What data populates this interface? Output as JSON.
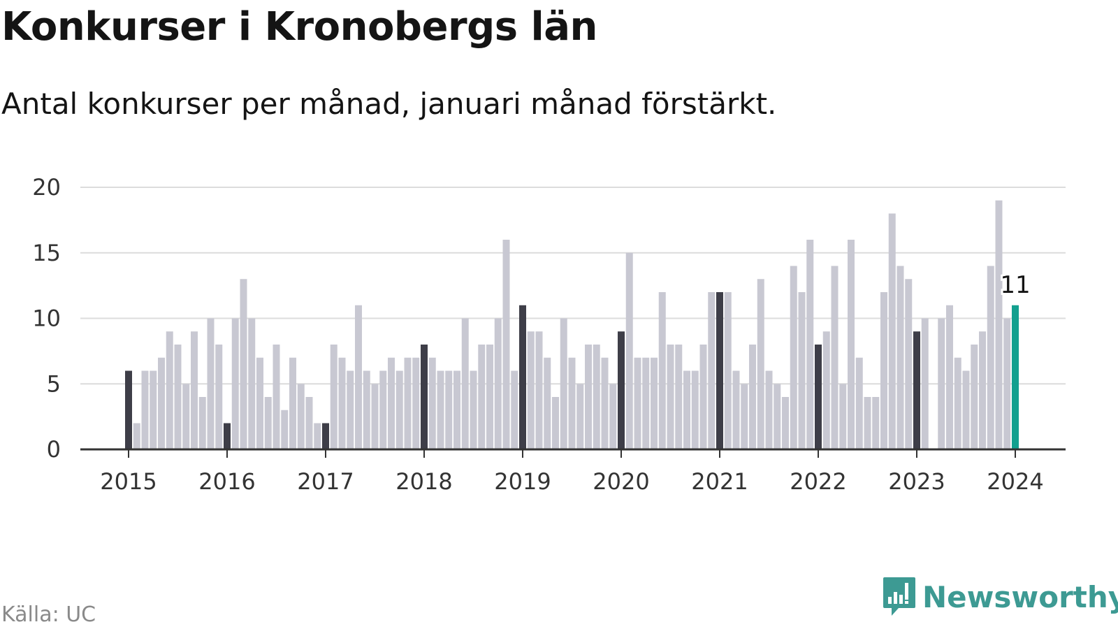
{
  "title": "Konkurser i Kronobergs län",
  "subtitle": "Antal konkurser per månad, januari månad förstärkt.",
  "source": "Källa: UC",
  "brand": {
    "name": "Newsworthy",
    "color": "#3d9a93",
    "icon": "newsworthy-logo-icon"
  },
  "colors": {
    "bar": "#c8c8d2",
    "january": "#3e3e48",
    "latest": "#13a08f",
    "grid": "#dcdcdc",
    "axis": "#333333"
  },
  "chart_data": {
    "type": "bar",
    "title": "Konkurser i Kronobergs län",
    "subtitle": "Antal konkurser per månad, januari månad förstärkt.",
    "xlabel": "",
    "ylabel": "",
    "ylim": [
      0,
      20
    ],
    "yticks": [
      0,
      5,
      10,
      15,
      20
    ],
    "xticks": [
      "2015",
      "2016",
      "2017",
      "2018",
      "2019",
      "2020",
      "2021",
      "2022",
      "2023",
      "2024"
    ],
    "grid": true,
    "legend": "none",
    "start": "2015-01",
    "highlight": "january",
    "annotation": {
      "month": "2024-01",
      "text": "11"
    },
    "values": [
      6,
      2,
      6,
      6,
      7,
      9,
      8,
      5,
      9,
      4,
      10,
      8,
      2,
      10,
      13,
      10,
      7,
      4,
      8,
      3,
      7,
      5,
      4,
      2,
      2,
      8,
      7,
      6,
      11,
      6,
      5,
      6,
      7,
      6,
      7,
      7,
      8,
      7,
      6,
      6,
      6,
      10,
      6,
      8,
      8,
      10,
      16,
      6,
      11,
      9,
      9,
      7,
      4,
      10,
      7,
      5,
      8,
      8,
      7,
      5,
      9,
      15,
      7,
      7,
      7,
      12,
      8,
      8,
      6,
      6,
      8,
      12,
      12,
      12,
      6,
      5,
      8,
      13,
      6,
      5,
      4,
      14,
      12,
      16,
      8,
      9,
      14,
      5,
      16,
      7,
      4,
      4,
      12,
      18,
      14,
      13,
      9,
      10,
      0,
      10,
      11,
      7,
      6,
      8,
      9,
      14,
      19,
      10,
      11
    ]
  }
}
